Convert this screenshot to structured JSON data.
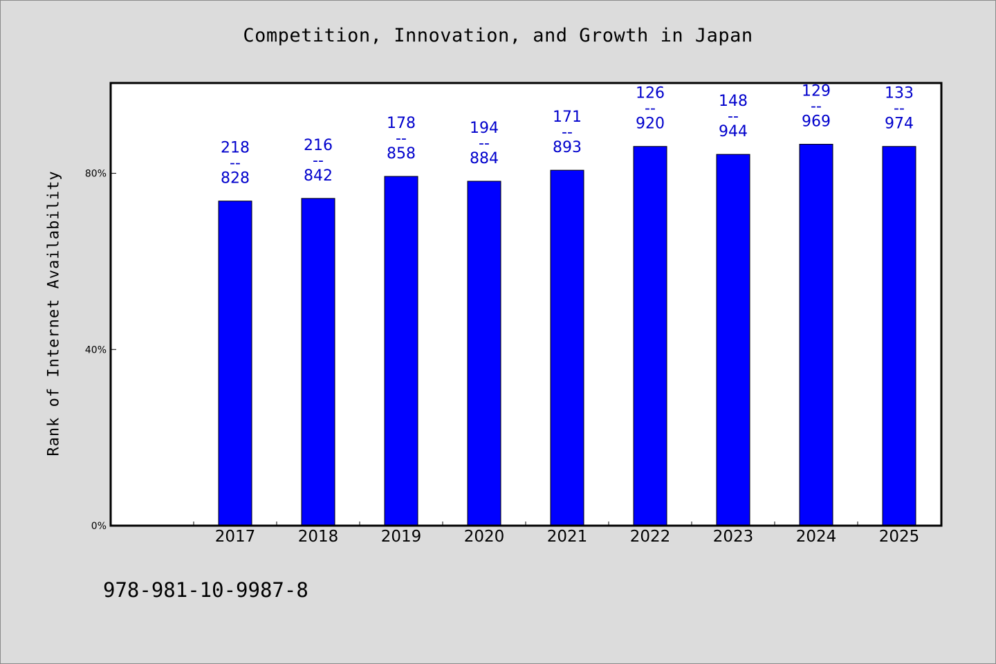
{
  "chart_data": {
    "type": "bar",
    "title": "Competition, Innovation, and Growth in Japan",
    "ylabel": "Rank of Internet Availability",
    "xlabel": "",
    "categories": [
      "2017",
      "2018",
      "2019",
      "2020",
      "2021",
      "2022",
      "2023",
      "2024",
      "2025"
    ],
    "values": [
      73.7,
      74.3,
      79.3,
      78.2,
      80.7,
      86.1,
      84.3,
      86.6,
      86.1
    ],
    "data_labels": [
      [
        "218",
        "--",
        "828"
      ],
      [
        "216",
        "--",
        "842"
      ],
      [
        "178",
        "--",
        "858"
      ],
      [
        "194",
        "--",
        "884"
      ],
      [
        "171",
        "--",
        "893"
      ],
      [
        "126",
        "--",
        "920"
      ],
      [
        "148",
        "--",
        "944"
      ],
      [
        "129",
        "--",
        "969"
      ],
      [
        "133",
        "--",
        "974"
      ]
    ],
    "yticks": [
      0,
      40,
      80
    ],
    "ytick_labels": [
      "0%",
      "40%",
      "80%"
    ],
    "ylim": [
      0,
      100.5
    ],
    "bar_color": "#0000ff",
    "label_color": "#0000cc",
    "grid": false
  },
  "footer": {
    "isbn": "978-981-10-9987-8"
  },
  "colors": {
    "background": "#dcdcdc",
    "plot_background": "#ffffff"
  }
}
